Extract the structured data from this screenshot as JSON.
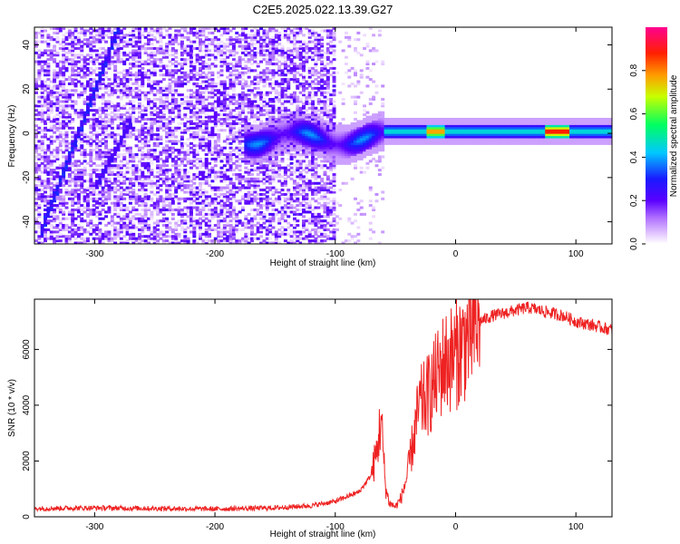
{
  "title": "C2E5.2025.022.13.39.G27",
  "colors": {
    "snr_line": "#ee2222",
    "axis": "#000000",
    "grid": "#aaaaaa"
  },
  "chart_data": [
    {
      "type": "heatmap",
      "title": "C2E5.2025.022.13.39.G27",
      "xlabel": "Height of straight line (km)",
      "ylabel": "Frequency (Hz)",
      "xlim": [
        -350,
        130
      ],
      "ylim": [
        -50,
        48
      ],
      "x_ticks": [
        -300,
        -200,
        -100,
        0,
        100
      ],
      "x_tick_labels": [
        "-300",
        "-200",
        "-100",
        "0",
        "100"
      ],
      "y_ticks": [
        -40,
        -20,
        0,
        20,
        40
      ],
      "y_tick_labels": [
        "-40",
        "-20",
        "0",
        "20",
        "40"
      ],
      "colorbar": {
        "label": "Normalized spectral amplitude",
        "range": [
          0,
          1
        ],
        "ticks": [
          0.0,
          0.2,
          0.4,
          0.6,
          0.8
        ],
        "tick_labels": [
          "0.0",
          "0.2",
          "0.4",
          "0.6",
          "0.8"
        ]
      },
      "features": [
        {
          "name": "carrier",
          "x": [
            -60,
            130
          ],
          "frequency": 1,
          "amplitude": 0.55
        },
        {
          "name": "peak",
          "x": [
            75,
            95
          ],
          "frequency": 1,
          "amplitude": 1.0
        },
        {
          "name": "diagonal-1",
          "x": [
            -345,
            -280
          ],
          "frequency": [
            -45,
            48
          ],
          "amplitude": 0.25
        },
        {
          "name": "diagonal-2",
          "x": [
            -300,
            -270
          ],
          "frequency": [
            -25,
            5
          ],
          "amplitude": 0.2
        },
        {
          "name": "noise-region",
          "x": [
            -350,
            -100
          ],
          "frequency": [
            -50,
            48
          ],
          "amplitude": 0.1
        }
      ]
    },
    {
      "type": "line",
      "xlabel": "Height of straight line (km)",
      "ylabel": "SNR (10 * v/v)",
      "xlim": [
        -350,
        130
      ],
      "ylim": [
        0,
        7800
      ],
      "x_ticks": [
        -300,
        -200,
        -100,
        0,
        100
      ],
      "x_tick_labels": [
        "-300",
        "-200",
        "-100",
        "0",
        "100"
      ],
      "y_ticks": [
        0,
        2000,
        4000,
        6000
      ],
      "y_tick_labels": [
        "0",
        "2000",
        "4000",
        "6000"
      ],
      "series": [
        {
          "name": "SNR",
          "x": [
            -350,
            -300,
            -250,
            -200,
            -150,
            -120,
            -100,
            -80,
            -70,
            -65,
            -62,
            -60,
            -58,
            -55,
            -50,
            -45,
            -40,
            -35,
            -30,
            -25,
            -20,
            -10,
            0,
            10,
            20,
            30,
            40,
            50,
            60,
            70,
            80,
            90,
            100,
            110,
            120,
            130
          ],
          "y": [
            300,
            320,
            300,
            280,
            320,
            400,
            550,
            900,
            1500,
            2400,
            3600,
            2200,
            1000,
            500,
            350,
            700,
            1500,
            2800,
            4000,
            4200,
            4600,
            5500,
            5800,
            6400,
            7000,
            7200,
            7300,
            7400,
            7500,
            7400,
            7300,
            7200,
            7000,
            6900,
            6800,
            6700
          ]
        }
      ]
    }
  ]
}
